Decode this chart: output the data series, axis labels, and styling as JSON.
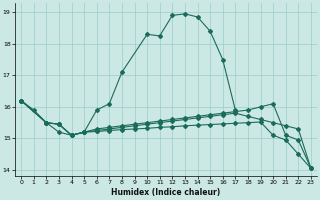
{
  "xlabel": "Humidex (Indice chaleur)",
  "background_color": "#cce8e4",
  "grid_color": "#99cccc",
  "line_color": "#1a6b5a",
  "ylim": [
    13.8,
    19.3
  ],
  "xlim": [
    -0.5,
    23.5
  ],
  "yticks": [
    14,
    15,
    16,
    17,
    18,
    19
  ],
  "xticks": [
    0,
    1,
    2,
    3,
    4,
    5,
    6,
    7,
    8,
    9,
    10,
    11,
    12,
    13,
    14,
    15,
    16,
    17,
    18,
    19,
    20,
    21,
    22,
    23
  ],
  "curve1_x": [
    0,
    1,
    2,
    3,
    4,
    5,
    6,
    7,
    8,
    10,
    11,
    12,
    13,
    14,
    15,
    16,
    17
  ],
  "curve1_y": [
    16.2,
    15.9,
    15.5,
    15.2,
    15.1,
    15.2,
    15.9,
    16.1,
    17.1,
    18.3,
    18.25,
    18.9,
    18.95,
    18.85,
    18.4,
    17.5,
    15.9
  ],
  "curve2_x": [
    0,
    2,
    3,
    4,
    5,
    6,
    7,
    8,
    9,
    10,
    11,
    12,
    13,
    14,
    15,
    16,
    17,
    18,
    19,
    20,
    21,
    22,
    23
  ],
  "curve2_y": [
    16.2,
    15.5,
    15.45,
    15.1,
    15.2,
    15.3,
    15.35,
    15.4,
    15.45,
    15.5,
    15.55,
    15.6,
    15.65,
    15.7,
    15.75,
    15.8,
    15.85,
    15.9,
    16.0,
    16.1,
    15.1,
    14.95,
    14.05
  ],
  "curve3_x": [
    0,
    2,
    3,
    4,
    5,
    6,
    7,
    8,
    9,
    10,
    11,
    12,
    13,
    14,
    15,
    16,
    17,
    18,
    19,
    20,
    21,
    22,
    23
  ],
  "curve3_y": [
    16.2,
    15.5,
    15.45,
    15.1,
    15.2,
    15.25,
    15.3,
    15.35,
    15.4,
    15.45,
    15.5,
    15.55,
    15.6,
    15.65,
    15.7,
    15.75,
    15.8,
    15.7,
    15.6,
    15.5,
    15.4,
    15.3,
    14.05
  ],
  "curve4_x": [
    0,
    2,
    3,
    4,
    5,
    6,
    7,
    8,
    9,
    10,
    11,
    12,
    13,
    14,
    15,
    16,
    17,
    18,
    19,
    20,
    21,
    22,
    23
  ],
  "curve4_y": [
    16.2,
    15.5,
    15.45,
    15.1,
    15.2,
    15.22,
    15.25,
    15.28,
    15.3,
    15.32,
    15.35,
    15.37,
    15.4,
    15.42,
    15.44,
    15.46,
    15.48,
    15.5,
    15.52,
    15.1,
    14.95,
    14.5,
    14.05
  ]
}
